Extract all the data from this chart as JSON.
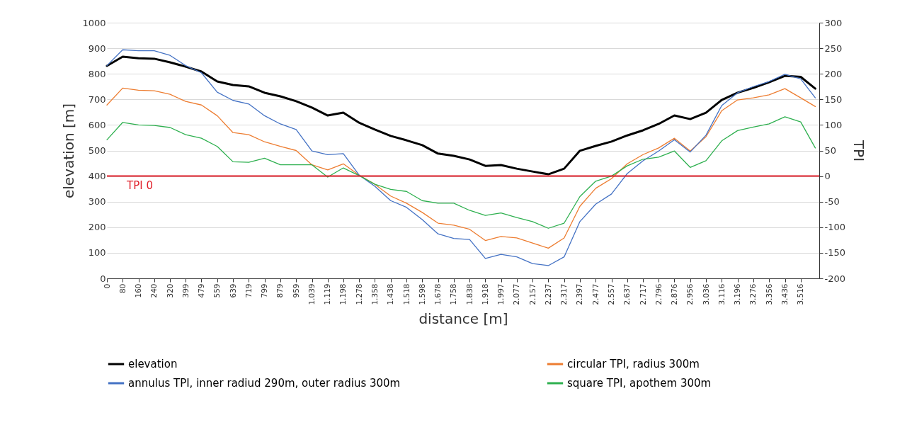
{
  "chart_data": {
    "type": "line",
    "xlabel": "distance  [m]",
    "ylabel": "elevation  [m]",
    "y2label": "TPI",
    "x": [
      0,
      80,
      160,
      240,
      320,
      399,
      479,
      559,
      639,
      719,
      799,
      879,
      959,
      1039,
      1119,
      1198,
      1278,
      1358,
      1438,
      1518,
      1598,
      1678,
      1758,
      1838,
      1918,
      1997,
      2077,
      2157,
      2237,
      2317,
      2397,
      2477,
      2557,
      2637,
      2717,
      2796,
      2876,
      2956,
      3036,
      3116,
      3196,
      3276,
      3356,
      3436,
      3516,
      3590
    ],
    "xlim": [
      0,
      3610
    ],
    "xticks": [
      0,
      80,
      160,
      240,
      320,
      399,
      479,
      559,
      639,
      719,
      799,
      879,
      959,
      {
        "value": 1039,
        "label": "1.039"
      },
      {
        "value": 1119,
        "label": "1.119"
      },
      {
        "value": 1198,
        "label": "1.198"
      },
      {
        "value": 1278,
        "label": "1.278"
      },
      {
        "value": 1358,
        "label": "1.358"
      },
      {
        "value": 1438,
        "label": "1.438"
      },
      {
        "value": 1518,
        "label": "1.518"
      },
      {
        "value": 1598,
        "label": "1.598"
      },
      {
        "value": 1678,
        "label": "1.678"
      },
      {
        "value": 1758,
        "label": "1.758"
      },
      {
        "value": 1838,
        "label": "1.838"
      },
      {
        "value": 1918,
        "label": "1.918"
      },
      {
        "value": 1997,
        "label": "1.997"
      },
      {
        "value": 2077,
        "label": "2.077"
      },
      {
        "value": 2157,
        "label": "2.157"
      },
      {
        "value": 2237,
        "label": "2.237"
      },
      {
        "value": 2317,
        "label": "2.317"
      },
      {
        "value": 2397,
        "label": "2.397"
      },
      {
        "value": 2477,
        "label": "2.477"
      },
      {
        "value": 2557,
        "label": "2.557"
      },
      {
        "value": 2637,
        "label": "2.637"
      },
      {
        "value": 2717,
        "label": "2.717"
      },
      {
        "value": 2796,
        "label": "2.796"
      },
      {
        "value": 2876,
        "label": "2.876"
      },
      {
        "value": 2956,
        "label": "2.956"
      },
      {
        "value": 3036,
        "label": "3.036"
      },
      {
        "value": 3116,
        "label": "3.116"
      },
      {
        "value": 3196,
        "label": "3.196"
      },
      {
        "value": 3276,
        "label": "3.276"
      },
      {
        "value": 3356,
        "label": "3.356"
      },
      {
        "value": 3436,
        "label": "3.436"
      },
      {
        "value": 3516,
        "label": "3.516"
      }
    ],
    "ylim": [
      0,
      1000
    ],
    "yticks": [
      0,
      100,
      200,
      300,
      400,
      500,
      600,
      700,
      800,
      900,
      1000
    ],
    "y2lim": [
      -200,
      300
    ],
    "y2ticks": [
      -200,
      -150,
      -100,
      -50,
      0,
      50,
      100,
      150,
      200,
      250,
      300
    ],
    "grid": "y",
    "legend": "bottom",
    "series": [
      {
        "name": "elevation",
        "color": "#000000",
        "values": [
          831,
          867,
          861,
          859,
          845,
          828,
          809,
          770,
          756,
          751,
          726,
          712,
          693,
          668,
          637,
          648,
          609,
          582,
          557,
          540,
          521,
          488,
          479,
          465,
          440,
          443,
          429,
          418,
          407,
          429,
          499,
          518,
          535,
          559,
          579,
          604,
          637,
          623,
          648,
          698,
          726,
          745,
          767,
          792,
          788,
          742
        ]
      },
      {
        "name": "circular TPI, radius 300m",
        "color": "#ed7d31",
        "axis": "y2",
        "values": [
          139,
          172,
          168,
          167,
          160,
          146,
          139,
          118,
          85,
          81,
          67,
          58,
          50,
          22,
          12,
          24,
          2,
          -16,
          -39,
          -53,
          -71,
          -92,
          -96,
          -104,
          -126,
          -118,
          -121,
          -131,
          -141,
          -121,
          -59,
          -24,
          -5,
          24,
          42,
          55,
          74,
          49,
          77,
          128,
          149,
          153,
          159,
          171,
          153,
          136
        ]
      },
      {
        "name": "annulus TPI, inner radiud 290m, outer radius 300m",
        "color": "#4472c4",
        "axis": "y2",
        "values": [
          216,
          247,
          245,
          245,
          236,
          216,
          202,
          164,
          148,
          141,
          118,
          102,
          91,
          49,
          42,
          44,
          2,
          -20,
          -48,
          -61,
          -85,
          -113,
          -122,
          -124,
          -161,
          -153,
          -158,
          -171,
          -175,
          -158,
          -89,
          -55,
          -35,
          5,
          30,
          49,
          71,
          47,
          80,
          138,
          163,
          175,
          185,
          199,
          190,
          153
        ]
      },
      {
        "name": "square TPI, apothem 300m",
        "color": "#2eb04f",
        "axis": "y2",
        "values": [
          71,
          105,
          100,
          99,
          95,
          81,
          74,
          58,
          28,
          27,
          35,
          22,
          22,
          22,
          -2,
          16,
          1,
          -16,
          -26,
          -30,
          -48,
          -53,
          -53,
          -67,
          -77,
          -72,
          -81,
          -89,
          -102,
          -92,
          -40,
          -10,
          0,
          20,
          33,
          37,
          49,
          17,
          30,
          69,
          89,
          96,
          102,
          116,
          106,
          55
        ]
      }
    ],
    "ref_lines": [
      {
        "axis": "y2",
        "value": 0,
        "label": "TPI 0",
        "color": "#e0202a"
      }
    ]
  }
}
